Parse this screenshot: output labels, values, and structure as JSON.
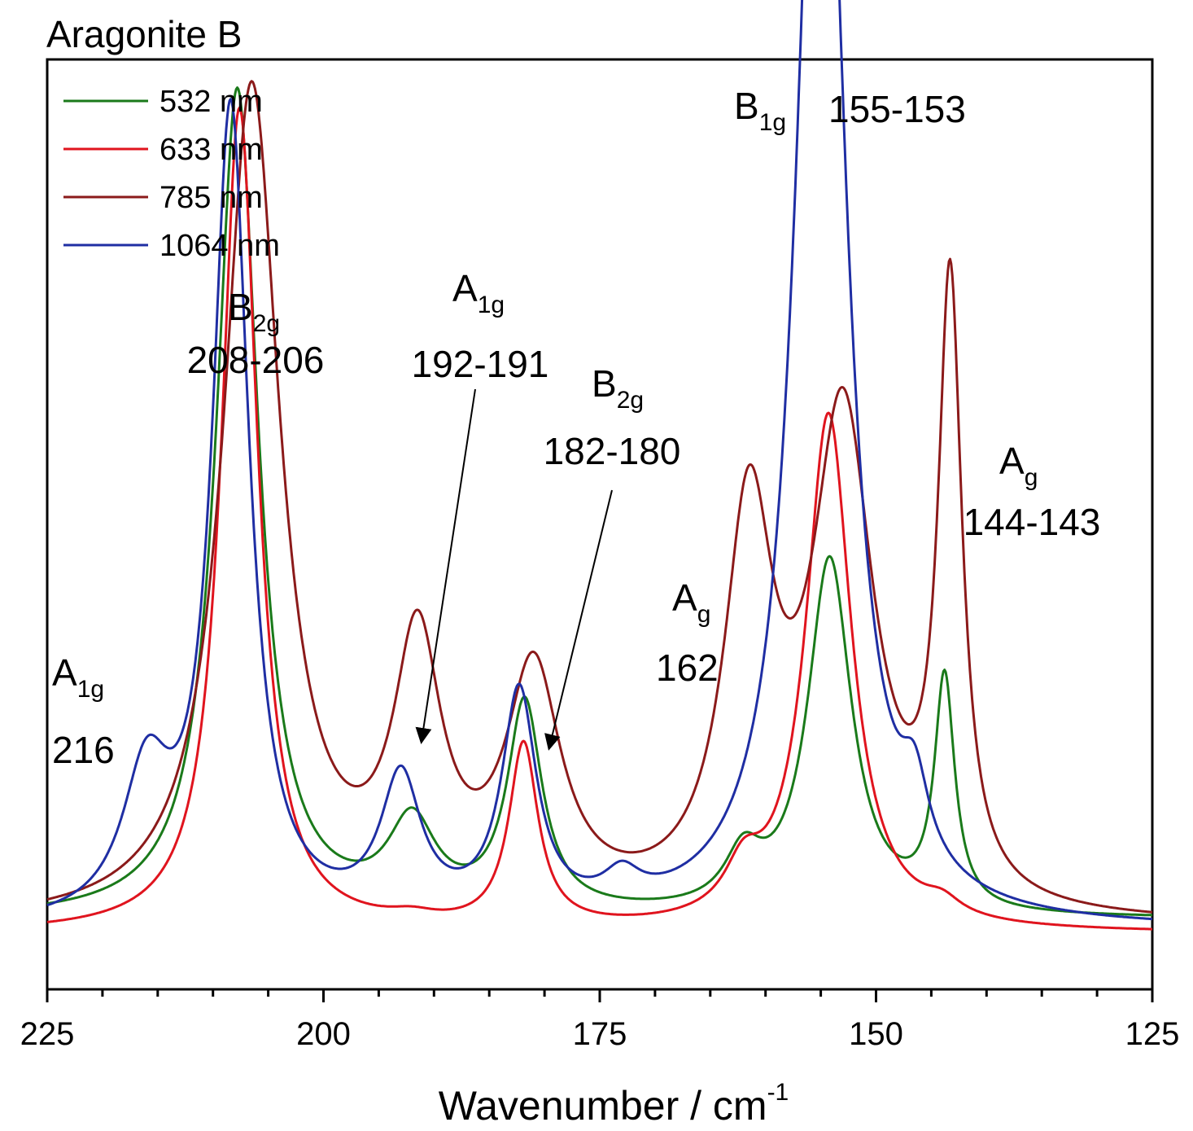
{
  "chart_data": {
    "type": "line",
    "title": "Aragonite B",
    "xlabel": "Wavenumber / cm",
    "xlabel_sup": "-1",
    "xlim": [
      225,
      125
    ],
    "x_ticks": [
      "225",
      "200",
      "175",
      "150",
      "125"
    ],
    "ylabel": "",
    "y_ticks_shown": false,
    "legend_position": "top-left",
    "series": [
      {
        "name": "532 nm",
        "color": "#1a7a1a",
        "baseline": 0.035,
        "peaks": [
          {
            "center": 207.8,
            "amp": 1.155,
            "sigma": 2.3
          },
          {
            "center": 192.0,
            "amp": 0.12,
            "sigma": 2.6
          },
          {
            "center": 181.8,
            "amp": 0.29,
            "sigma": 1.9
          },
          {
            "center": 162.0,
            "amp": 0.07,
            "sigma": 2.0
          },
          {
            "center": 154.2,
            "amp": 0.495,
            "sigma": 2.4
          },
          {
            "center": 143.8,
            "amp": 0.32,
            "sigma": 1.1
          }
        ]
      },
      {
        "name": "633 nm",
        "color": "#e0141e",
        "baseline": 0.015,
        "peaks": [
          {
            "center": 207.6,
            "amp": 1.15,
            "sigma": 2.0
          },
          {
            "center": 192.0,
            "amp": 0.01,
            "sigma": 2.6
          },
          {
            "center": 181.9,
            "amp": 0.255,
            "sigma": 1.6
          },
          {
            "center": 162.0,
            "amp": 0.06,
            "sigma": 2.0
          },
          {
            "center": 154.3,
            "amp": 0.72,
            "sigma": 2.5
          },
          {
            "center": 144.0,
            "amp": 0.02,
            "sigma": 2.0
          }
        ]
      },
      {
        "name": "785 nm",
        "color": "#8b1a1a",
        "baseline": 0.025,
        "peaks": [
          {
            "center": 206.5,
            "amp": 1.16,
            "sigma": 3.1
          },
          {
            "center": 191.5,
            "amp": 0.36,
            "sigma": 2.6
          },
          {
            "center": 181.0,
            "amp": 0.325,
            "sigma": 3.0
          },
          {
            "center": 161.5,
            "amp": 0.53,
            "sigma": 2.7
          },
          {
            "center": 153.0,
            "amp": 0.68,
            "sigma": 3.4
          },
          {
            "center": 143.3,
            "amp": 0.84,
            "sigma": 1.3
          }
        ]
      },
      {
        "name": "1064 nm",
        "color": "#1f2ea3",
        "baseline": 0.02,
        "peaks": [
          {
            "center": 216.0,
            "amp": 0.19,
            "sigma": 2.6
          },
          {
            "center": 208.4,
            "amp": 1.13,
            "sigma": 2.0
          },
          {
            "center": 193.0,
            "amp": 0.19,
            "sigma": 2.2
          },
          {
            "center": 182.3,
            "amp": 0.31,
            "sigma": 1.9
          },
          {
            "center": 173.0,
            "amp": 0.04,
            "sigma": 2.0
          },
          {
            "center": 155.0,
            "amp": 1.84,
            "sigma": 2.6
          },
          {
            "center": 146.5,
            "amp": 0.1,
            "sigma": 1.5
          }
        ]
      }
    ],
    "annotations": [
      {
        "main": "A",
        "sub": "1g",
        "value": "216"
      },
      {
        "main": "B",
        "sub": "2g",
        "value": "208-206"
      },
      {
        "main": "A",
        "sub": "1g",
        "value": "192-191",
        "arrow_target_x": 191.5
      },
      {
        "main": "B",
        "sub": "2g",
        "value": "182-180",
        "arrow_target_x": 181.0
      },
      {
        "main": "A",
        "sub": "g",
        "value": "162"
      },
      {
        "main": "B",
        "sub": "1g",
        "value": "155-153"
      },
      {
        "main": "A",
        "sub": "g",
        "value": "144-143"
      }
    ]
  }
}
